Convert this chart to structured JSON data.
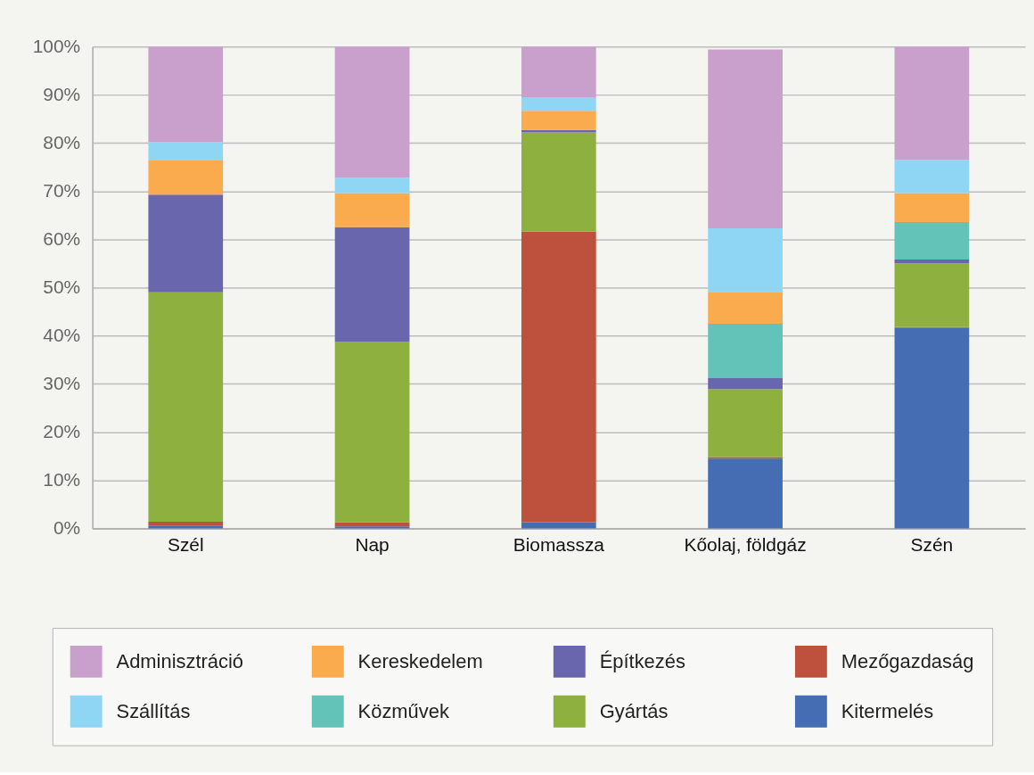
{
  "chart_data": {
    "type": "bar",
    "stacked": true,
    "categories": [
      "Szél",
      "Nap",
      "Biomassza",
      "Kőolaj, földgáz",
      "Szén"
    ],
    "series": [
      {
        "name": "Kitermelés",
        "color": "#456db3",
        "values": [
          0.6,
          0.4,
          1.3,
          14.5,
          41.6
        ]
      },
      {
        "name": "Mezőgazdaság",
        "color": "#bd513e",
        "values": [
          0.8,
          0.9,
          60.3,
          0.3,
          0.2
        ]
      },
      {
        "name": "Gyártás",
        "color": "#8db03f",
        "values": [
          47.6,
          37.4,
          20.6,
          14.1,
          13.2
        ]
      },
      {
        "name": "Építkezés",
        "color": "#6a66ae",
        "values": [
          20.3,
          23.8,
          0.5,
          2.3,
          0.8
        ]
      },
      {
        "name": "Közművek",
        "color": "#63c3b8",
        "values": [
          null,
          null,
          null,
          11.3,
          7.8
        ]
      },
      {
        "name": "Kereskedelem",
        "color": "#f9ab4d",
        "values": [
          7.2,
          7.1,
          4.0,
          6.6,
          6.0
        ]
      },
      {
        "name": "Szállítás",
        "color": "#8ed6f4",
        "values": [
          3.7,
          3.2,
          2.8,
          13.2,
          6.9
        ]
      },
      {
        "name": "Adminisztráció",
        "color": "#c9a0cb",
        "values": [
          19.8,
          27.2,
          10.5,
          37.1,
          23.5
        ]
      }
    ],
    "ylim": [
      0,
      100
    ],
    "yticks": [
      {
        "value": 0,
        "label": "0%"
      },
      {
        "value": 10,
        "label": "10%"
      },
      {
        "value": 20,
        "label": "20%"
      },
      {
        "value": 30,
        "label": "30%"
      },
      {
        "value": 40,
        "label": "40%"
      },
      {
        "value": 50,
        "label": "50%"
      },
      {
        "value": 60,
        "label": "60%"
      },
      {
        "value": 70,
        "label": "70%"
      },
      {
        "value": 80,
        "label": "80%"
      },
      {
        "value": 90,
        "label": "90%"
      },
      {
        "value": 100,
        "label": "100%"
      }
    ],
    "grid": "y",
    "legend": "bottom"
  }
}
